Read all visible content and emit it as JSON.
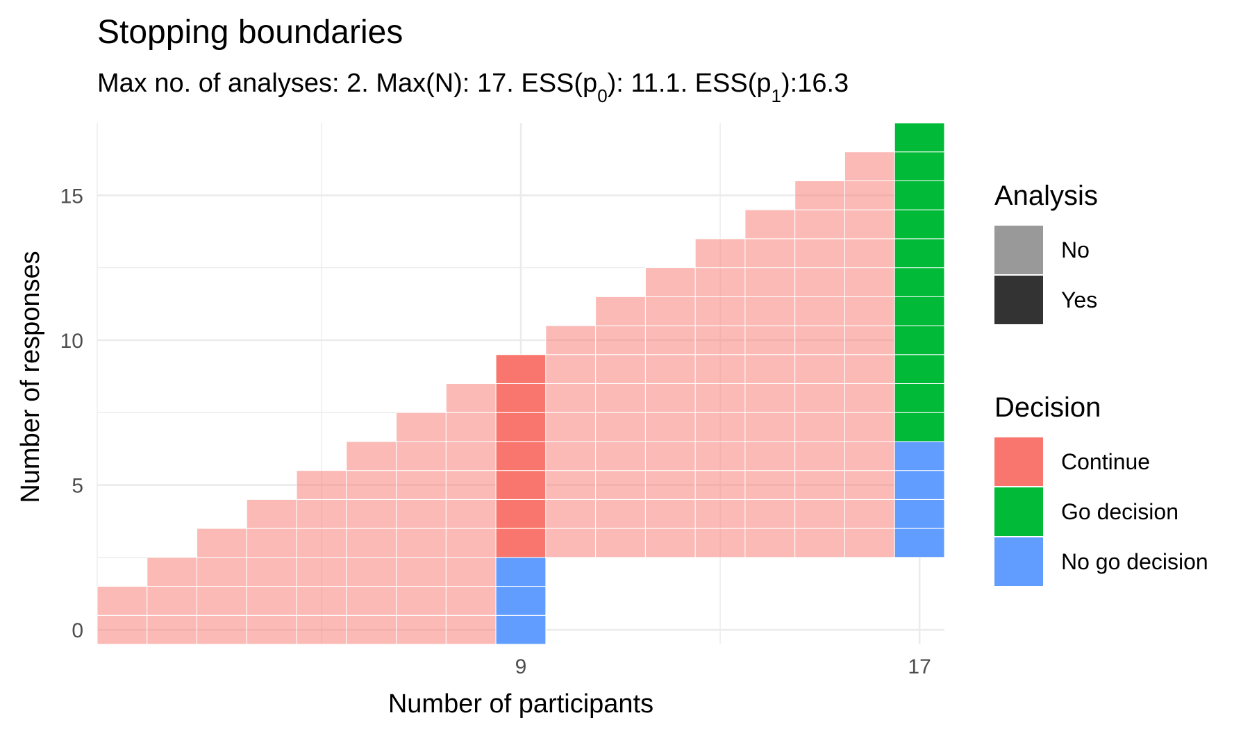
{
  "chart_data": {
    "type": "heatmap",
    "title": "Stopping boundaries",
    "subtitle": {
      "part1": "Max no. of analyses: 2. Max(N): 17. ESS(p",
      "sub1": "0",
      "part2": "): 11.1. ESS(p",
      "sub2": "1",
      "part3": "):16.3"
    },
    "xlabel": "Number of participants",
    "ylabel": "Number of responses",
    "x_ticks": [
      9,
      17
    ],
    "y_ticks": [
      0,
      5,
      10,
      15
    ],
    "xlim": [
      0.5,
      17.5
    ],
    "ylim": [
      -0.5,
      17.5
    ],
    "grid": true,
    "legend_position": "right",
    "colors": {
      "Continue": "#F8766D",
      "Go decision": "#00BA38",
      "No go decision": "#619CFF",
      "analysis_no_alpha": 0.5,
      "analysis_yes_alpha": 1.0
    },
    "legends": [
      {
        "title": "Analysis",
        "entries": [
          {
            "label": "No",
            "color": "#999999"
          },
          {
            "label": "Yes",
            "color": "#333333"
          }
        ]
      },
      {
        "title": "Decision",
        "entries": [
          {
            "label": "Continue",
            "color": "#F8766D"
          },
          {
            "label": "Go decision",
            "color": "#00BA38"
          },
          {
            "label": "No go decision",
            "color": "#619CFF"
          }
        ]
      }
    ],
    "columns": [
      {
        "n": 1,
        "analysis": "No",
        "cells": [
          {
            "from": 0,
            "to": 1,
            "decision": "Continue"
          }
        ]
      },
      {
        "n": 2,
        "analysis": "No",
        "cells": [
          {
            "from": 0,
            "to": 2,
            "decision": "Continue"
          }
        ]
      },
      {
        "n": 3,
        "analysis": "No",
        "cells": [
          {
            "from": 0,
            "to": 3,
            "decision": "Continue"
          }
        ]
      },
      {
        "n": 4,
        "analysis": "No",
        "cells": [
          {
            "from": 0,
            "to": 4,
            "decision": "Continue"
          }
        ]
      },
      {
        "n": 5,
        "analysis": "No",
        "cells": [
          {
            "from": 0,
            "to": 5,
            "decision": "Continue"
          }
        ]
      },
      {
        "n": 6,
        "analysis": "No",
        "cells": [
          {
            "from": 0,
            "to": 6,
            "decision": "Continue"
          }
        ]
      },
      {
        "n": 7,
        "analysis": "No",
        "cells": [
          {
            "from": 0,
            "to": 7,
            "decision": "Continue"
          }
        ]
      },
      {
        "n": 8,
        "analysis": "No",
        "cells": [
          {
            "from": 0,
            "to": 8,
            "decision": "Continue"
          }
        ]
      },
      {
        "n": 9,
        "analysis": "Yes",
        "cells": [
          {
            "from": 0,
            "to": 2,
            "decision": "No go decision"
          },
          {
            "from": 3,
            "to": 9,
            "decision": "Continue"
          }
        ]
      },
      {
        "n": 10,
        "analysis": "No",
        "cells": [
          {
            "from": 3,
            "to": 10,
            "decision": "Continue"
          }
        ]
      },
      {
        "n": 11,
        "analysis": "No",
        "cells": [
          {
            "from": 3,
            "to": 11,
            "decision": "Continue"
          }
        ]
      },
      {
        "n": 12,
        "analysis": "No",
        "cells": [
          {
            "from": 3,
            "to": 12,
            "decision": "Continue"
          }
        ]
      },
      {
        "n": 13,
        "analysis": "No",
        "cells": [
          {
            "from": 3,
            "to": 13,
            "decision": "Continue"
          }
        ]
      },
      {
        "n": 14,
        "analysis": "No",
        "cells": [
          {
            "from": 3,
            "to": 14,
            "decision": "Continue"
          }
        ]
      },
      {
        "n": 15,
        "analysis": "No",
        "cells": [
          {
            "from": 3,
            "to": 15,
            "decision": "Continue"
          }
        ]
      },
      {
        "n": 16,
        "analysis": "No",
        "cells": [
          {
            "from": 3,
            "to": 16,
            "decision": "Continue"
          }
        ]
      },
      {
        "n": 17,
        "analysis": "Yes",
        "cells": [
          {
            "from": 3,
            "to": 6,
            "decision": "No go decision"
          },
          {
            "from": 7,
            "to": 17,
            "decision": "Go decision"
          }
        ]
      }
    ]
  }
}
